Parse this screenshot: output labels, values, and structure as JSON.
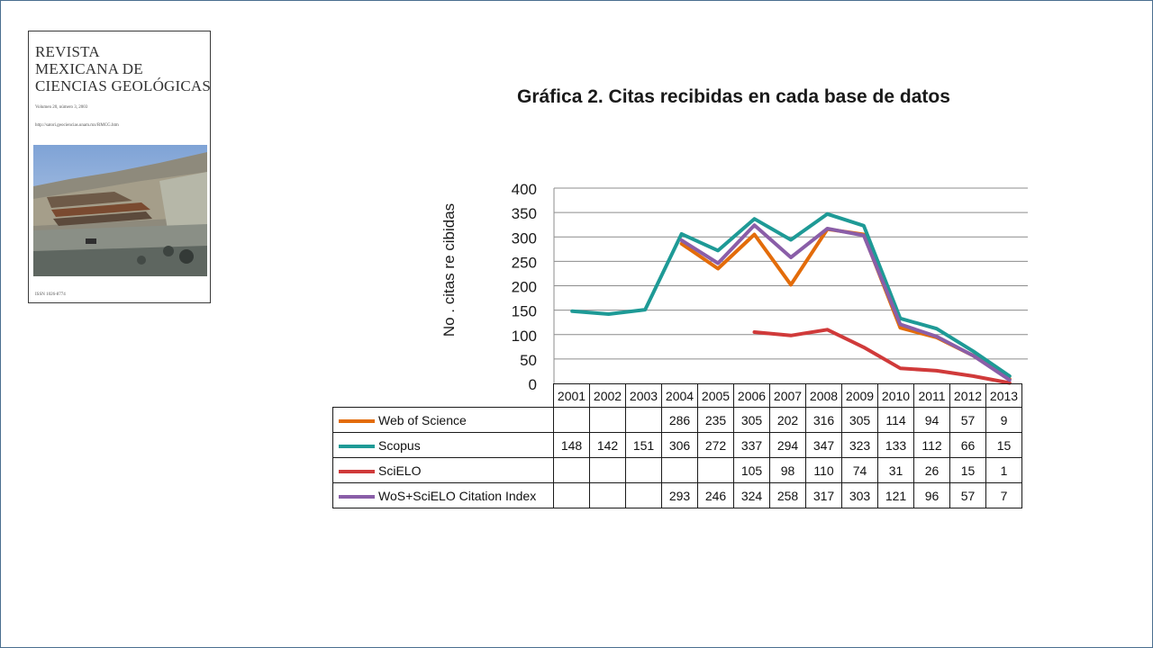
{
  "cover": {
    "title_lines": [
      "REVISTA",
      "MEXICANA DE",
      "CIENCIAS GEOLÓGICAS"
    ],
    "volume": "Volumen 20, número 3, 2003",
    "url": "http://satori.geociencias.unam.mx/RMCG.htm",
    "issn": "ISSN 1026-8774"
  },
  "chart_data": {
    "type": "line",
    "title": "Gráfica 2. Citas recibidas en cada base de datos",
    "ylabel": "No .   citas re cibidas",
    "xlabel": "",
    "ylim": [
      0,
      400
    ],
    "yticks": [
      0,
      50,
      100,
      150,
      200,
      250,
      300,
      350,
      400
    ],
    "grid": true,
    "legend": "table",
    "x": [
      "2001",
      "2002",
      "2003",
      "2004",
      "2005",
      "2006",
      "2007",
      "2008",
      "2009",
      "2010",
      "2011",
      "2012",
      "2013"
    ],
    "series": [
      {
        "name": "Web of Science",
        "color": "#e36c0a",
        "values": [
          null,
          null,
          null,
          286,
          235,
          305,
          202,
          316,
          305,
          114,
          94,
          57,
          9
        ]
      },
      {
        "name": "Scopus",
        "color": "#1e9a96",
        "values": [
          148,
          142,
          151,
          306,
          272,
          337,
          294,
          347,
          323,
          133,
          112,
          66,
          15
        ]
      },
      {
        "name": "SciELO",
        "color": "#d03a3a",
        "values": [
          null,
          null,
          null,
          null,
          null,
          105,
          98,
          110,
          74,
          31,
          26,
          15,
          1
        ]
      },
      {
        "name": "WoS+SciELO Citation Index",
        "color": "#8a5ea8",
        "values": [
          null,
          null,
          null,
          293,
          246,
          324,
          258,
          317,
          303,
          121,
          96,
          57,
          7
        ]
      }
    ]
  }
}
